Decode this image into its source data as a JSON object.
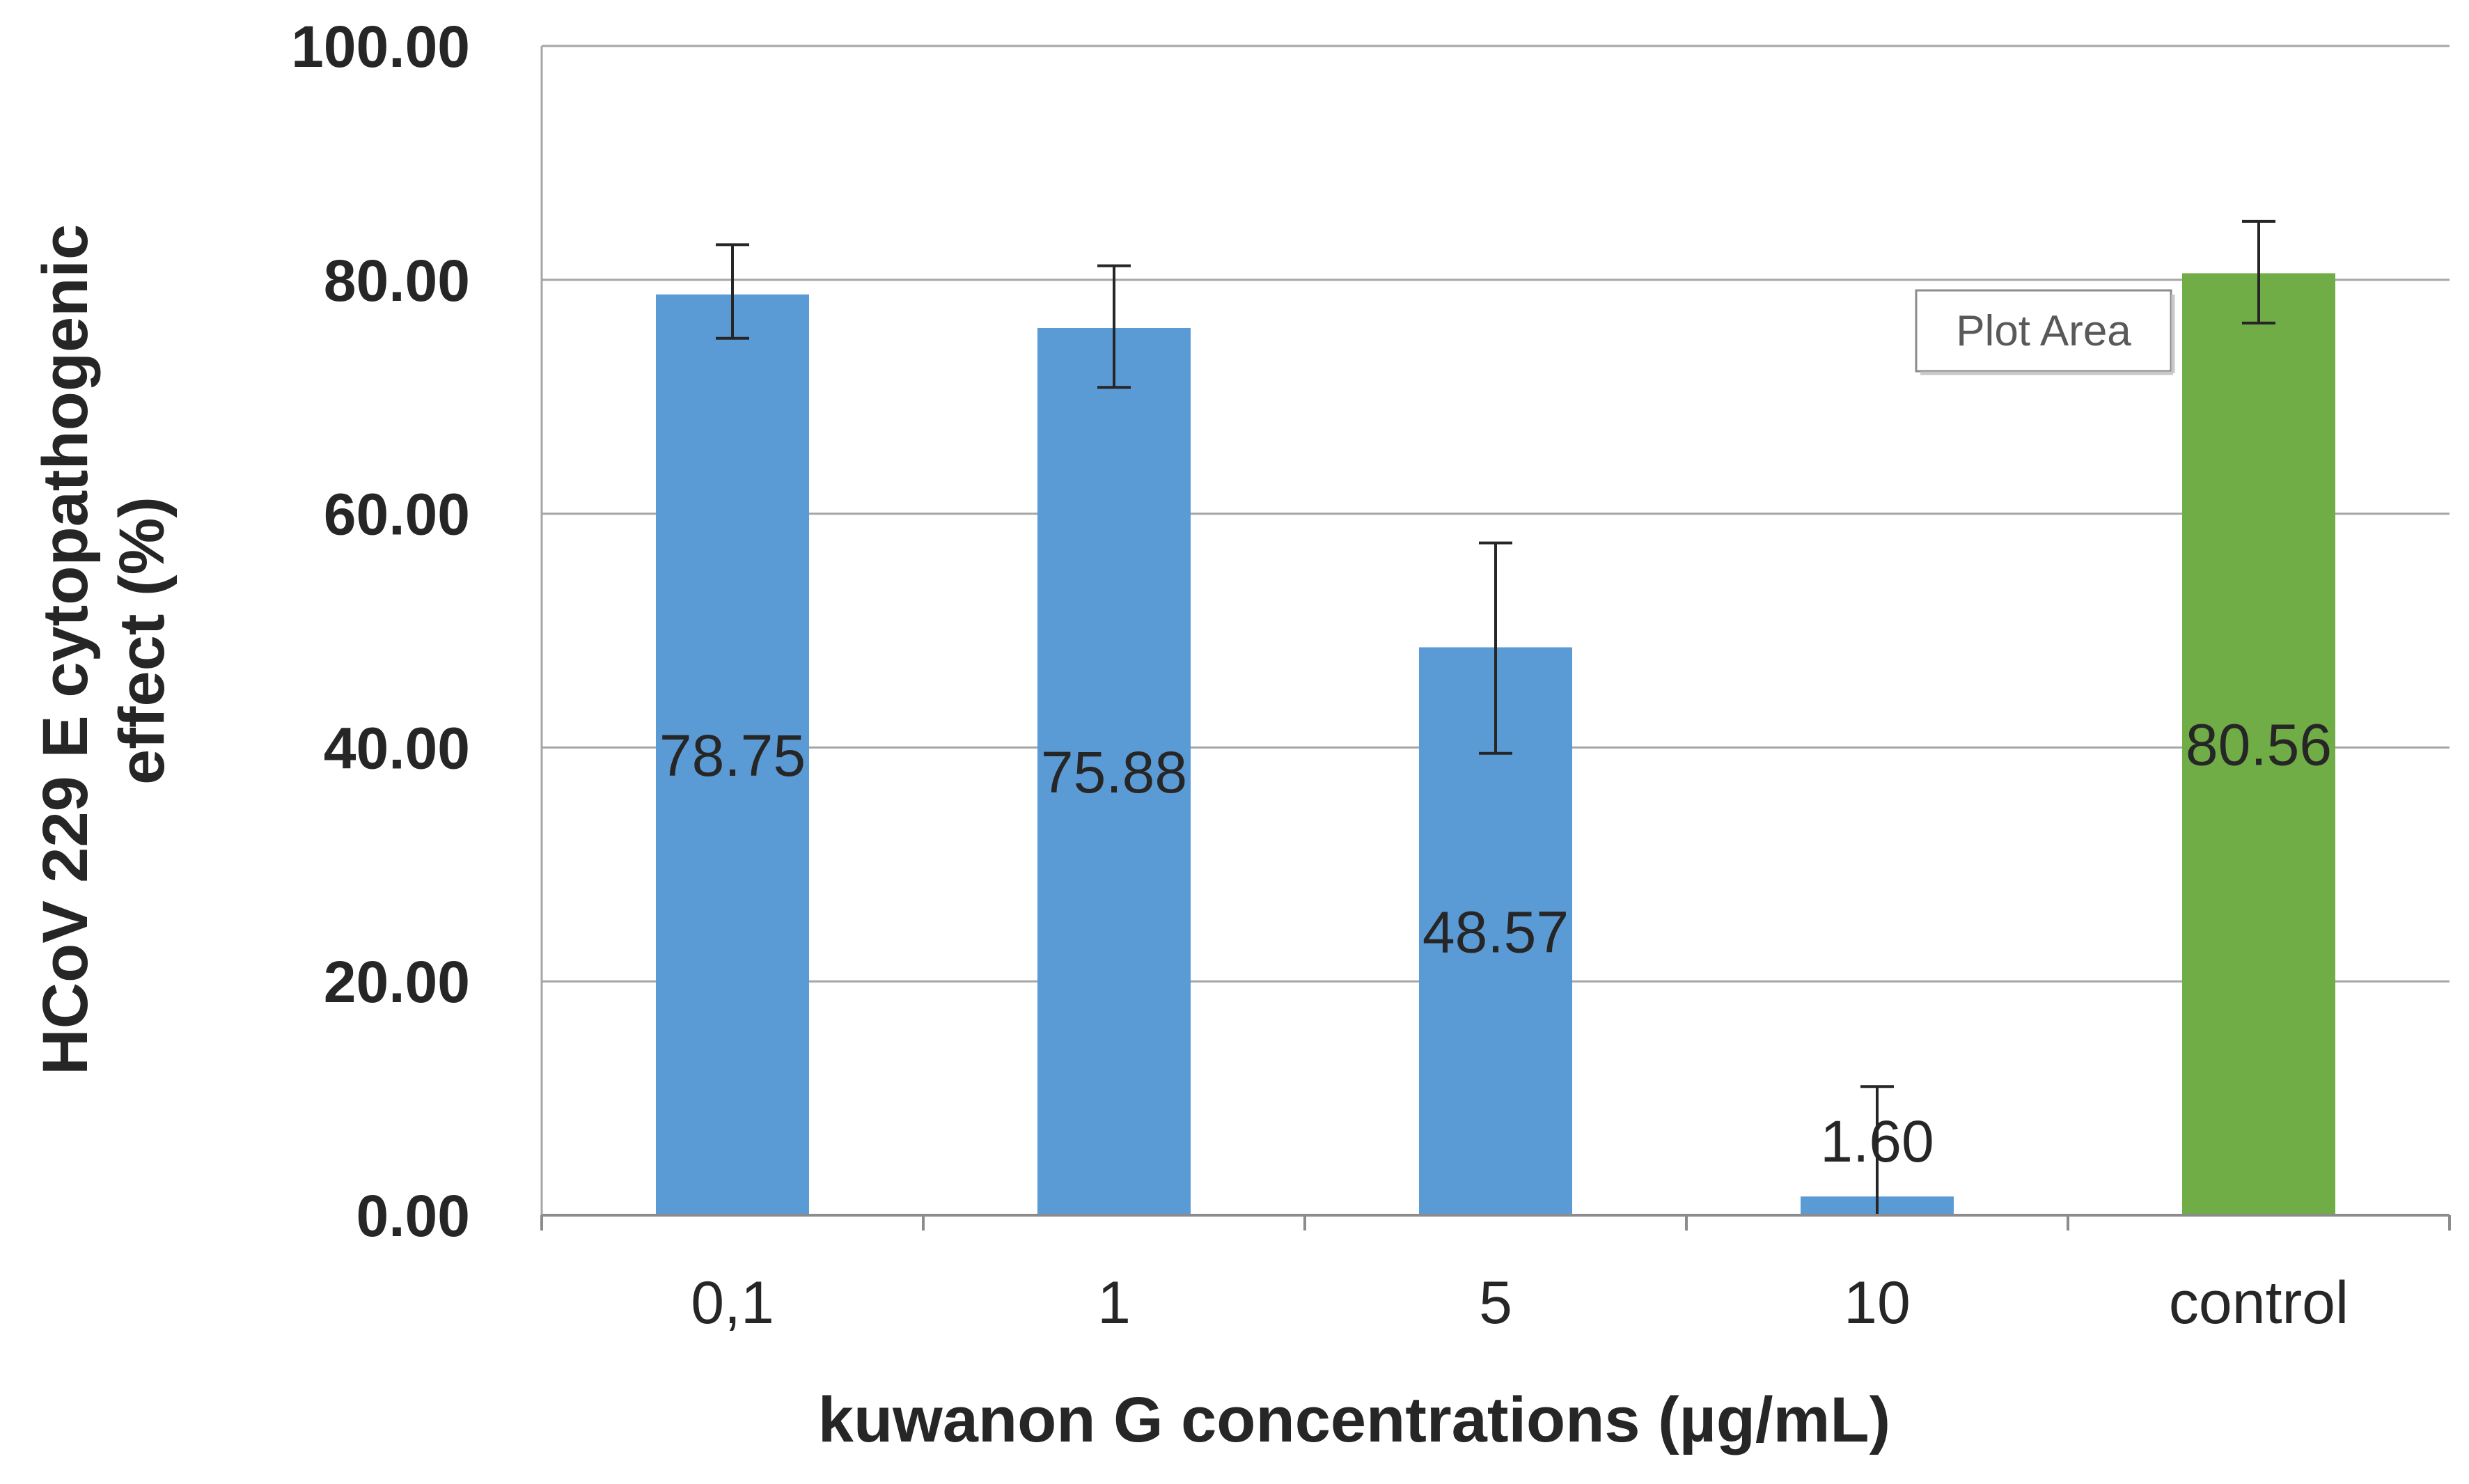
{
  "chart_data": {
    "type": "bar",
    "categories": [
      "0,1",
      "1",
      "5",
      "10",
      "control"
    ],
    "values": [
      78.75,
      75.88,
      48.57,
      1.6,
      80.56
    ],
    "data_labels": [
      "78.75",
      "75.88",
      "48.57",
      "1.60",
      "80.56"
    ],
    "error_bars": [
      {
        "upper": 83.0,
        "lower": 75.0
      },
      {
        "upper": 81.2,
        "lower": 70.8
      },
      {
        "upper": 57.5,
        "lower": 39.5
      },
      {
        "upper": 11.0,
        "lower": 0.0
      },
      {
        "upper": 85.0,
        "lower": 76.3
      }
    ],
    "bar_colors": [
      "#5B9BD5",
      "#5B9BD5",
      "#5B9BD5",
      "#5B9BD5",
      "#70AD47"
    ],
    "xlabel": "kuwanon G concentrations (µg/mL)",
    "ylabel_lines": [
      "HCoV 229 E cytopathogenic",
      "effect (%)"
    ],
    "ylim": [
      0,
      100
    ],
    "yticks": [
      "0.00",
      "20.00",
      "40.00",
      "60.00",
      "80.00",
      "100.00"
    ],
    "grid": true,
    "legend": "none"
  },
  "tooltip": {
    "label": "Plot Area"
  }
}
